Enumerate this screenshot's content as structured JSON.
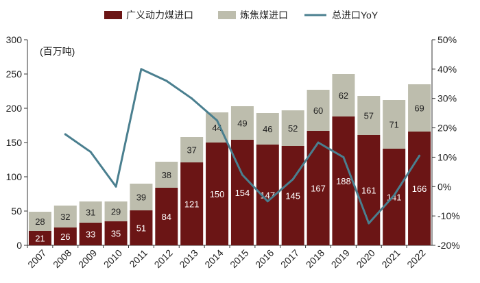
{
  "chart_data": {
    "type": "bar",
    "stacked": true,
    "unit_label": "(百万吨)",
    "categories": [
      "2007",
      "2008",
      "2009",
      "2010",
      "2011",
      "2012",
      "2013",
      "2014",
      "2015",
      "2016",
      "2017",
      "2018",
      "2019",
      "2020",
      "2021",
      "2022"
    ],
    "series": [
      {
        "name": "广义动力煤进口",
        "kind": "bar",
        "axis": "left",
        "color": "#6b1515",
        "values": [
          21,
          26,
          33,
          35,
          51,
          84,
          121,
          150,
          154,
          147,
          145,
          167,
          188,
          161,
          141,
          166
        ]
      },
      {
        "name": "炼焦煤进口",
        "kind": "bar",
        "axis": "left",
        "color": "#bdbdad",
        "values": [
          28,
          32,
          31,
          29,
          39,
          38,
          37,
          44,
          49,
          46,
          52,
          60,
          62,
          57,
          71,
          69
        ]
      },
      {
        "name": "总进口YoY",
        "kind": "line",
        "axis": "right",
        "color": "#4a7f8f",
        "values": [
          null,
          17.8,
          11.8,
          0.0,
          40.0,
          36.0,
          30.0,
          22.5,
          4.0,
          -5.0,
          2.5,
          15.0,
          10.0,
          -12.5,
          -3.0,
          10.5
        ]
      }
    ],
    "y_left": {
      "min": 0,
      "max": 300,
      "ticks": [
        0,
        50,
        100,
        150,
        200,
        250,
        300
      ]
    },
    "y_right": {
      "min": -20,
      "max": 50,
      "ticks": [
        "-20%",
        "-10%",
        "0%",
        "10%",
        "20%",
        "30%",
        "40%",
        "50%"
      ]
    },
    "legend_position": "top"
  }
}
